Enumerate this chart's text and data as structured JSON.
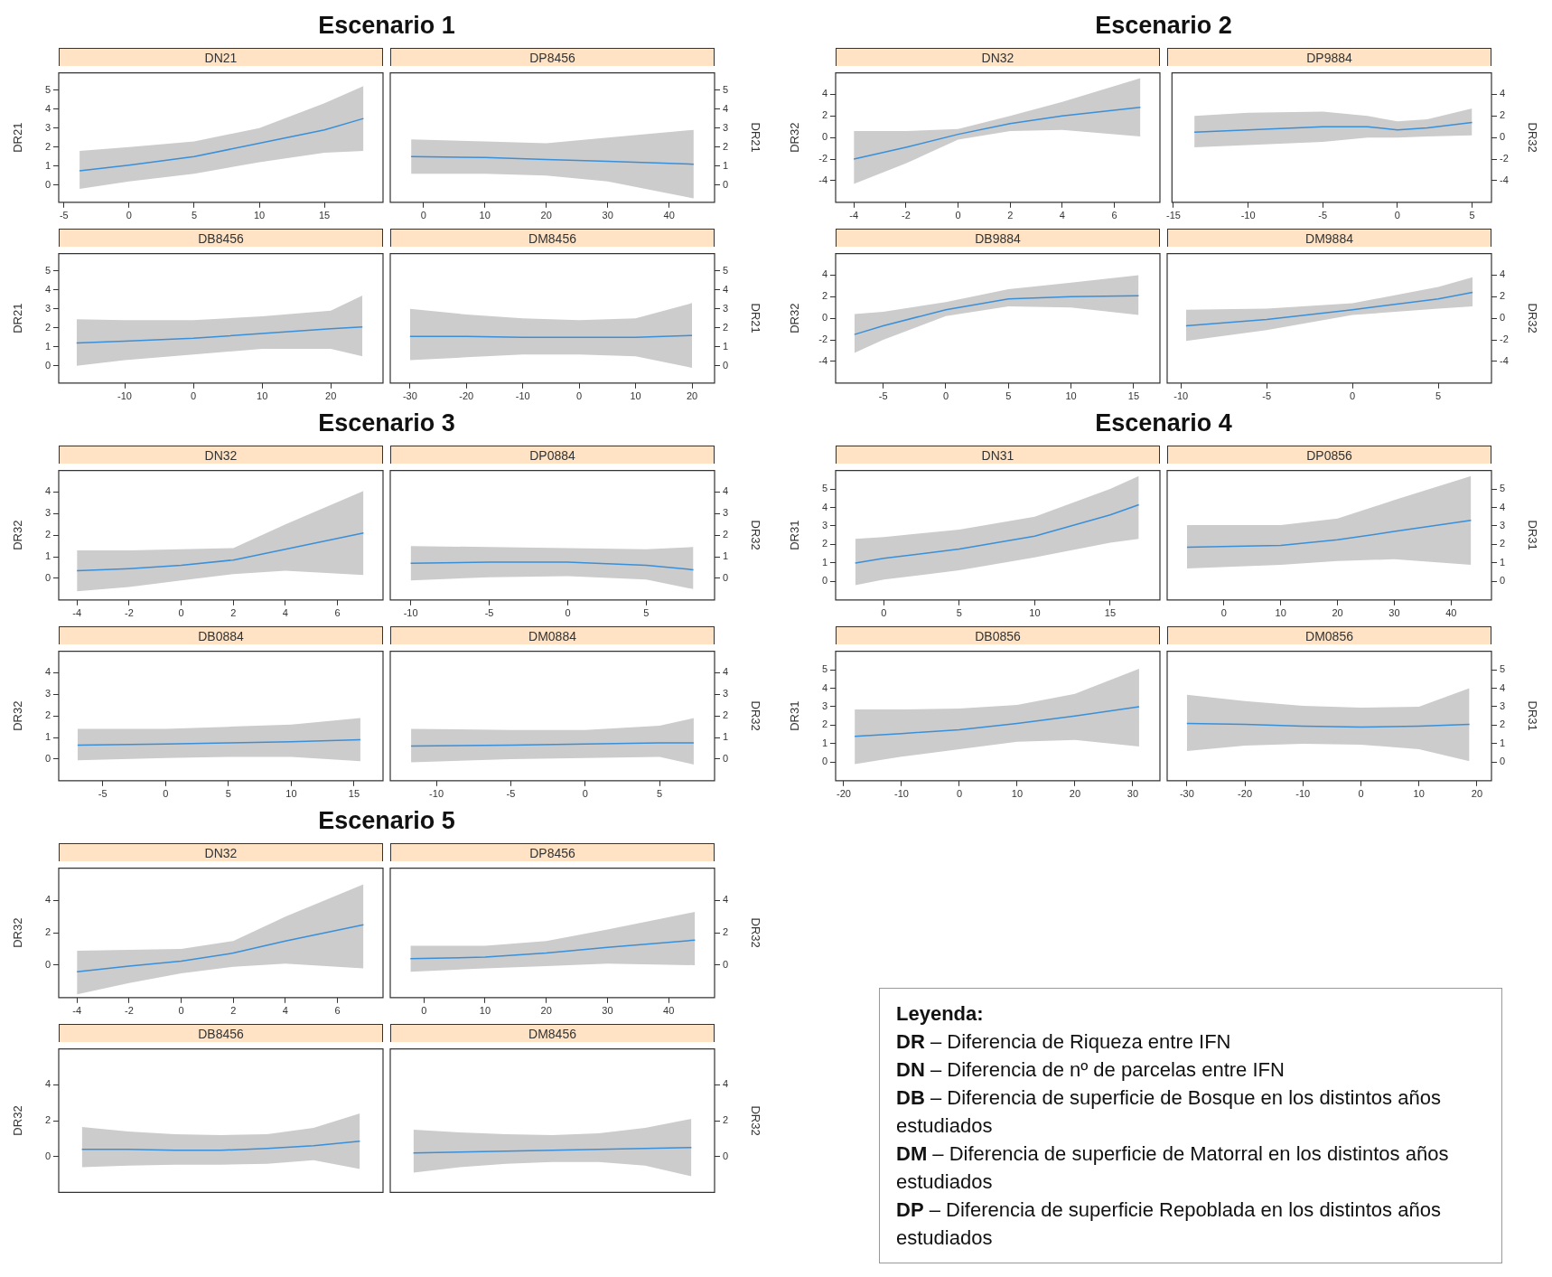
{
  "chart_data": [
    {
      "type": "line",
      "annotations": [
        "Escenario 1"
      ],
      "title": "DN21",
      "ylabel": "DR21",
      "xlim": [
        -5.4,
        19.5
      ],
      "xticks": [
        -5,
        0,
        5,
        10,
        15
      ],
      "ylim": [
        -0.9,
        5.9
      ],
      "yticks": [
        0,
        1,
        2,
        3,
        4,
        5
      ],
      "x": [
        -3.8,
        0,
        5,
        10,
        15,
        18
      ],
      "series": [
        {
          "color": "#3a8fd9",
          "values": [
            0.75,
            1.05,
            1.5,
            2.2,
            2.9,
            3.5
          ],
          "lower": [
            -0.2,
            0.2,
            0.6,
            1.2,
            1.7,
            1.8
          ],
          "upper": [
            1.8,
            2.0,
            2.3,
            3.0,
            4.3,
            5.2
          ]
        }
      ]
    },
    {
      "type": "line",
      "title": "DP8456",
      "ylabel": "DR21",
      "xlim": [
        -5.4,
        47.4
      ],
      "xticks": [
        0,
        10,
        20,
        30,
        40
      ],
      "ylim": [
        -0.9,
        5.9
      ],
      "yticks": [
        0,
        1,
        2,
        3,
        4,
        5
      ],
      "x": [
        -2,
        10,
        20,
        30,
        44
      ],
      "series": [
        {
          "color": "#3a8fd9",
          "values": [
            1.5,
            1.45,
            1.35,
            1.25,
            1.1
          ],
          "lower": [
            0.6,
            0.6,
            0.5,
            0.2,
            -0.7
          ],
          "upper": [
            2.4,
            2.3,
            2.2,
            2.5,
            2.9
          ]
        }
      ]
    },
    {
      "type": "line",
      "title": "DB8456",
      "ylabel": "DR21",
      "xlim": [
        -19.6,
        27.6
      ],
      "xticks": [
        -10,
        0,
        10,
        20
      ],
      "ylim": [
        -0.9,
        5.9
      ],
      "yticks": [
        0,
        1,
        2,
        3,
        4,
        5
      ],
      "x": [
        -17,
        -10,
        0,
        10,
        20,
        24.6
      ],
      "series": [
        {
          "color": "#3a8fd9",
          "values": [
            1.2,
            1.3,
            1.45,
            1.7,
            1.95,
            2.05
          ],
          "lower": [
            0,
            0.3,
            0.6,
            0.9,
            0.9,
            0.5
          ],
          "upper": [
            2.45,
            2.4,
            2.4,
            2.6,
            2.9,
            3.7
          ]
        }
      ]
    },
    {
      "type": "line",
      "title": "DM8456",
      "ylabel": "DR21",
      "xlim": [
        -33.5,
        24
      ],
      "xticks": [
        -30,
        -20,
        -10,
        0,
        10,
        20
      ],
      "ylim": [
        -0.9,
        5.9
      ],
      "yticks": [
        0,
        1,
        2,
        3,
        4,
        5
      ],
      "x": [
        -30,
        -20,
        -10,
        0,
        10,
        20
      ],
      "series": [
        {
          "color": "#3a8fd9",
          "values": [
            1.55,
            1.55,
            1.5,
            1.5,
            1.5,
            1.6
          ],
          "lower": [
            0.3,
            0.45,
            0.6,
            0.6,
            0.5,
            -0.1
          ],
          "upper": [
            3.0,
            2.7,
            2.5,
            2.4,
            2.5,
            3.3
          ]
        }
      ]
    },
    {
      "type": "line",
      "annotations": [
        "Escenario 2"
      ],
      "title": "DN32",
      "ylabel": "DR32",
      "xlim": [
        -4.7,
        7.75
      ],
      "xticks": [
        -4,
        -2,
        0,
        2,
        4,
        6
      ],
      "ylim": [
        -6,
        6
      ],
      "yticks": [
        -4,
        -2,
        0,
        2,
        4
      ],
      "x": [
        -4,
        -2,
        0,
        2,
        4,
        7
      ],
      "series": [
        {
          "color": "#3a8fd9",
          "values": [
            -2.0,
            -0.9,
            0.3,
            1.3,
            2.0,
            2.8
          ],
          "lower": [
            -4.3,
            -2.4,
            -0.2,
            0.6,
            0.7,
            0.1
          ],
          "upper": [
            0.6,
            0.6,
            0.8,
            2.0,
            3.3,
            5.5
          ]
        }
      ]
    },
    {
      "type": "line",
      "title": "DP9884",
      "ylabel": "DR32",
      "xlim": [
        -15.1,
        6.3
      ],
      "xticks": [
        -15,
        -10,
        -5,
        0,
        5
      ],
      "ylim": [
        -6,
        6
      ],
      "yticks": [
        -4,
        -2,
        0,
        2,
        4
      ],
      "x": [
        -13.6,
        -10,
        -5,
        -2,
        0,
        2,
        5
      ],
      "series": [
        {
          "color": "#3a8fd9",
          "values": [
            0.5,
            0.7,
            1.0,
            1.0,
            0.7,
            0.9,
            1.4
          ],
          "lower": [
            -0.9,
            -0.7,
            -0.4,
            0,
            0,
            0.1,
            0.2
          ],
          "upper": [
            2.0,
            2.3,
            2.4,
            2.0,
            1.5,
            1.7,
            2.7
          ]
        }
      ]
    },
    {
      "type": "line",
      "title": "DB9884",
      "ylabel": "DR32",
      "xlim": [
        -8.8,
        17.1
      ],
      "xticks": [
        -5,
        0,
        5,
        10,
        15
      ],
      "ylim": [
        -6,
        6
      ],
      "yticks": [
        -4,
        -2,
        0,
        2,
        4
      ],
      "x": [
        -7.3,
        -5,
        0,
        5,
        10,
        15.4
      ],
      "series": [
        {
          "color": "#3a8fd9",
          "values": [
            -1.5,
            -0.7,
            0.8,
            1.8,
            2.0,
            2.1
          ],
          "lower": [
            -3.2,
            -2.0,
            0.2,
            1.1,
            1.0,
            0.3
          ],
          "upper": [
            0.4,
            0.6,
            1.5,
            2.7,
            3.3,
            4.0
          ]
        }
      ]
    },
    {
      "type": "line",
      "title": "DM9884",
      "ylabel": "DR32",
      "xlim": [
        -10.8,
        8.1
      ],
      "xticks": [
        -10,
        -5,
        0,
        5
      ],
      "ylim": [
        -6,
        6
      ],
      "yticks": [
        -4,
        -2,
        0,
        2,
        4
      ],
      "x": [
        -9.7,
        -5,
        0,
        5,
        7
      ],
      "series": [
        {
          "color": "#3a8fd9",
          "values": [
            -0.7,
            -0.1,
            0.8,
            1.8,
            2.4
          ],
          "lower": [
            -2.1,
            -1.1,
            0.3,
            0.9,
            1.1
          ],
          "upper": [
            0.8,
            0.9,
            1.4,
            2.9,
            3.8
          ]
        }
      ]
    },
    {
      "type": "line",
      "annotations": [
        "Escenario 3"
      ],
      "title": "DN32",
      "ylabel": "DR32",
      "xlim": [
        -4.7,
        7.75
      ],
      "xticks": [
        -4,
        -2,
        0,
        2,
        4,
        6
      ],
      "ylim": [
        -1,
        5
      ],
      "yticks": [
        0,
        1,
        2,
        3,
        4
      ],
      "x": [
        -4,
        -2,
        0,
        2,
        4,
        7
      ],
      "series": [
        {
          "color": "#3a8fd9",
          "values": [
            0.35,
            0.45,
            0.6,
            0.85,
            1.35,
            2.1
          ],
          "lower": [
            -0.6,
            -0.4,
            -0.1,
            0.2,
            0.35,
            0.15
          ],
          "upper": [
            1.3,
            1.3,
            1.35,
            1.4,
            2.5,
            4.05
          ]
        }
      ]
    },
    {
      "type": "line",
      "title": "DP0884",
      "ylabel": "DR32",
      "xlim": [
        -11.3,
        9.35
      ],
      "xticks": [
        -10,
        -5,
        0,
        5
      ],
      "ylim": [
        -1,
        5
      ],
      "yticks": [
        0,
        1,
        2,
        3,
        4
      ],
      "x": [
        -10,
        -5,
        0,
        5,
        8
      ],
      "series": [
        {
          "color": "#3a8fd9",
          "values": [
            0.7,
            0.75,
            0.75,
            0.6,
            0.4
          ],
          "lower": [
            -0.1,
            0.05,
            0.1,
            -0.05,
            -0.5
          ],
          "upper": [
            1.5,
            1.45,
            1.4,
            1.35,
            1.45
          ]
        }
      ]
    },
    {
      "type": "line",
      "title": "DB0884",
      "ylabel": "DR32",
      "xlim": [
        -8.5,
        17.3
      ],
      "xticks": [
        -5,
        0,
        5,
        10,
        15
      ],
      "ylim": [
        -1,
        5
      ],
      "yticks": [
        0,
        1,
        2,
        3,
        4
      ],
      "x": [
        -7,
        0,
        5,
        10,
        15.5
      ],
      "series": [
        {
          "color": "#3a8fd9",
          "values": [
            0.65,
            0.7,
            0.75,
            0.8,
            0.9
          ],
          "lower": [
            -0.05,
            0.05,
            0.1,
            0.1,
            -0.1
          ],
          "upper": [
            1.4,
            1.4,
            1.5,
            1.6,
            1.9
          ]
        }
      ]
    },
    {
      "type": "line",
      "title": "DM0884",
      "ylabel": "DR32",
      "xlim": [
        -13.1,
        8.7
      ],
      "xticks": [
        -10,
        -5,
        0,
        5
      ],
      "ylim": [
        -1,
        5
      ],
      "yticks": [
        0,
        1,
        2,
        3,
        4
      ],
      "x": [
        -11.7,
        -5,
        0,
        5,
        7.3
      ],
      "series": [
        {
          "color": "#3a8fd9",
          "values": [
            0.6,
            0.65,
            0.7,
            0.75,
            0.75
          ],
          "lower": [
            -0.15,
            0,
            0.05,
            0.1,
            -0.25
          ],
          "upper": [
            1.4,
            1.35,
            1.35,
            1.55,
            1.9
          ]
        }
      ]
    },
    {
      "type": "line",
      "annotations": [
        "Escenario 4"
      ],
      "title": "DN31",
      "ylabel": "DR31",
      "xlim": [
        -3.2,
        18.3
      ],
      "xticks": [
        0,
        5,
        10,
        15
      ],
      "ylim": [
        -1,
        6
      ],
      "yticks": [
        0,
        1,
        2,
        3,
        4,
        5
      ],
      "x": [
        -1.9,
        0,
        5,
        10,
        15,
        16.9
      ],
      "series": [
        {
          "color": "#3a8fd9",
          "values": [
            1.0,
            1.25,
            1.75,
            2.45,
            3.6,
            4.15
          ],
          "lower": [
            -0.2,
            0.1,
            0.6,
            1.3,
            2.1,
            2.3
          ],
          "upper": [
            2.3,
            2.4,
            2.8,
            3.5,
            5.0,
            5.7
          ]
        }
      ]
    },
    {
      "type": "line",
      "title": "DP0856",
      "ylabel": "DR31",
      "xlim": [
        -10,
        47.1
      ],
      "xticks": [
        0,
        10,
        20,
        30,
        40
      ],
      "ylim": [
        -1,
        6
      ],
      "yticks": [
        0,
        1,
        2,
        3,
        4,
        5
      ],
      "x": [
        -6.5,
        10,
        20,
        30,
        43.5
      ],
      "series": [
        {
          "color": "#3a8fd9",
          "values": [
            1.85,
            1.95,
            2.25,
            2.7,
            3.3
          ],
          "lower": [
            0.7,
            0.9,
            1.1,
            1.2,
            0.9
          ],
          "upper": [
            3.05,
            3.05,
            3.4,
            4.4,
            5.7
          ]
        }
      ]
    },
    {
      "type": "line",
      "title": "DB0856",
      "ylabel": "DR31",
      "xlim": [
        -21.4,
        34.7
      ],
      "xticks": [
        -20,
        -10,
        0,
        10,
        20,
        30
      ],
      "ylim": [
        -1,
        6
      ],
      "yticks": [
        0,
        1,
        2,
        3,
        4,
        5
      ],
      "x": [
        -18.1,
        -10,
        0,
        10,
        20,
        31.1
      ],
      "series": [
        {
          "color": "#3a8fd9",
          "values": [
            1.4,
            1.55,
            1.75,
            2.1,
            2.5,
            3.0
          ],
          "lower": [
            -0.1,
            0.3,
            0.7,
            1.1,
            1.2,
            0.85
          ],
          "upper": [
            2.85,
            2.85,
            2.9,
            3.1,
            3.7,
            5.05
          ]
        }
      ]
    },
    {
      "type": "line",
      "title": "DM0856",
      "ylabel": "DR31",
      "xlim": [
        -33.4,
        22.5
      ],
      "xticks": [
        -30,
        -20,
        -10,
        0,
        10,
        20
      ],
      "ylim": [
        -1,
        6
      ],
      "yticks": [
        0,
        1,
        2,
        3,
        4,
        5
      ],
      "x": [
        -30,
        -20,
        -10,
        0,
        10,
        18.7
      ],
      "series": [
        {
          "color": "#3a8fd9",
          "values": [
            2.1,
            2.05,
            1.95,
            1.9,
            1.95,
            2.05
          ],
          "lower": [
            0.6,
            0.9,
            1.0,
            0.95,
            0.7,
            0.05
          ],
          "upper": [
            3.65,
            3.3,
            3.05,
            2.95,
            3.0,
            4.0
          ]
        }
      ]
    },
    {
      "type": "line",
      "annotations": [
        "Escenario 5"
      ],
      "title": "DN32",
      "ylabel": "DR32",
      "xlim": [
        -4.7,
        7.75
      ],
      "xticks": [
        -4,
        -2,
        0,
        2,
        4,
        6
      ],
      "ylim": [
        -2,
        6
      ],
      "yticks": [
        0,
        2,
        4
      ],
      "x": [
        -4,
        -2,
        0,
        2,
        4,
        7
      ],
      "series": [
        {
          "color": "#3a8fd9",
          "values": [
            -0.4,
            -0.05,
            0.25,
            0.75,
            1.5,
            2.5
          ],
          "lower": [
            -1.8,
            -1.1,
            -0.5,
            -0.1,
            0.1,
            -0.2
          ],
          "upper": [
            0.9,
            0.95,
            1.0,
            1.5,
            3.0,
            5.0
          ]
        }
      ]
    },
    {
      "type": "line",
      "title": "DP8456",
      "ylabel": "DR32",
      "xlim": [
        -5.5,
        47.5
      ],
      "xticks": [
        0,
        10,
        20,
        30,
        40
      ],
      "ylim": [
        -2,
        6
      ],
      "yticks": [
        0,
        2,
        4
      ],
      "x": [
        -2.2,
        10,
        20,
        30,
        44.3
      ],
      "series": [
        {
          "color": "#3a8fd9",
          "values": [
            0.4,
            0.5,
            0.75,
            1.1,
            1.55
          ],
          "lower": [
            -0.4,
            -0.2,
            -0.05,
            0.1,
            0
          ],
          "upper": [
            1.2,
            1.2,
            1.5,
            2.2,
            3.3
          ]
        }
      ]
    },
    {
      "type": "line",
      "title": "DB8456",
      "ylabel": "DR32",
      "tick_labels": "y",
      "ylim": [
        -2,
        6
      ],
      "yticks": [
        0,
        2,
        4
      ],
      "categories": [
        null,
        null,
        null,
        null,
        null,
        null,
        null
      ],
      "series": [
        {
          "color": "#3a8fd9",
          "values": [
            0.4,
            0.4,
            0.35,
            0.35,
            0.45,
            0.6,
            0.85
          ],
          "lower": [
            -0.6,
            -0.5,
            -0.45,
            -0.45,
            -0.4,
            -0.2,
            -0.7
          ],
          "upper": [
            1.65,
            1.4,
            1.25,
            1.2,
            1.25,
            1.6,
            2.4
          ]
        }
      ]
    },
    {
      "type": "line",
      "title": "DM8456",
      "ylabel": "DR32",
      "tick_labels": "y",
      "ylim": [
        -2,
        6
      ],
      "yticks": [
        0,
        2,
        4
      ],
      "categories": [
        null,
        null,
        null,
        null,
        null,
        null,
        null
      ],
      "series": [
        {
          "color": "#3a8fd9",
          "values": [
            0.2,
            0.25,
            0.3,
            0.35,
            0.4,
            0.45,
            0.5
          ],
          "lower": [
            -0.9,
            -0.6,
            -0.4,
            -0.3,
            -0.3,
            -0.5,
            -1.1
          ],
          "upper": [
            1.5,
            1.35,
            1.25,
            1.2,
            1.3,
            1.6,
            2.1
          ]
        }
      ]
    },
    {
      "type": "other",
      "title": "Leyenda:",
      "annotations": [
        "DR – Diferencia de Riqueza entre IFN",
        "DN – Diferencia de nº de parcelas entre IFN",
        "DB – Diferencia de superficie de Bosque en los distintos años estudiados",
        "DM – Diferencia de superficie de Matorral en los distintos años estudiados",
        "DP – Diferencia de superficie Repoblada en los distintos años estudiados"
      ]
    }
  ]
}
